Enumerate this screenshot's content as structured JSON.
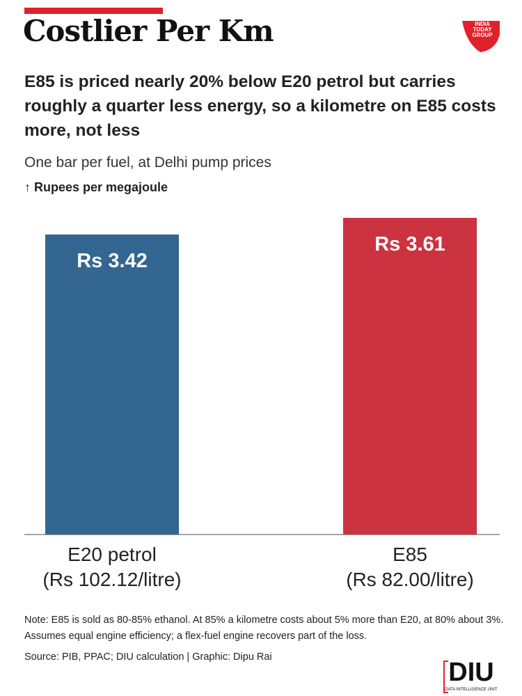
{
  "chart_data": {
    "type": "bar",
    "title": "Costlier Per Km",
    "subtitle": "E85 is priced nearly 20% below E20 petrol but carries roughly a quarter less energy, so a kilometre on E85 costs more, not less",
    "description": "One bar per fuel, at Delhi pump prices",
    "y_label": "↑ Rupees per megajoule",
    "categories": [
      "E20 petrol\n(Rs 102.12/litre)",
      "E85\n(Rs 82.00/litre)"
    ],
    "values": [
      3.42,
      3.61
    ],
    "value_labels": [
      "Rs 3.42",
      "Rs 3.61"
    ],
    "colors": [
      "#336690",
      "#cc3340"
    ],
    "note": "Note: E85 is sold as 80-85% ethanol. At 85% a kilometre costs about 5% more than E20, at 80% about 3%. Assumes equal engine efficiency; a flex-fuel engine recovers part of the loss.",
    "source": "Source: PIB, PPAC; DIU calculation | Graphic: Dipu Rai"
  },
  "brand": {
    "group_logo": [
      "INDIA",
      "TODAY",
      "GROUP"
    ],
    "unit_logo": "DIU",
    "unit_name": "DATA INTELLIGENCE UNIT"
  }
}
